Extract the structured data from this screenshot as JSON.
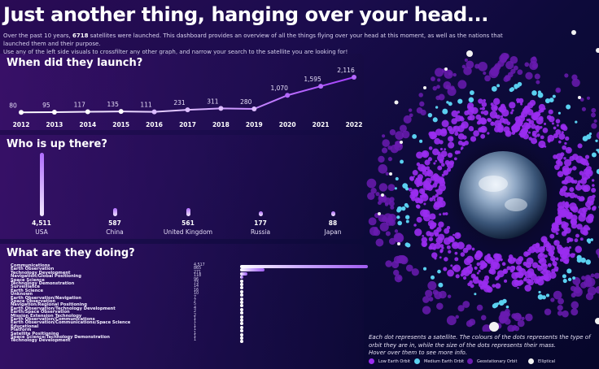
{
  "header": {
    "title": "Just another thing, hanging over your head...",
    "intro_pre": "Over the past 10 years, ",
    "intro_count": "6718",
    "intro_post": " satellites were launched. This dashboard provides an overview of all the things flying over your head at this moment, as well as the nations that launched them and their purpose.",
    "intro_line2": "Use any of the left side visuals to crossfilter any other graph, and narrow your search to the satellite you are looking for!"
  },
  "launch_panel": {
    "title": "When did they launch?"
  },
  "who_panel": {
    "title": "Who is up there?"
  },
  "doing_panel": {
    "title": "What are they doing?"
  },
  "colors": {
    "accent": "#b468ff",
    "low_earth_orbit": "#9a2cf0",
    "medium_earth_orbit": "#5ad0f0",
    "geostationary_orbit": "#6a1bb0",
    "elliptical": "#f2f2f2"
  },
  "chart_data": [
    {
      "type": "line",
      "title": "When did they launch?",
      "x": [
        "2012",
        "2013",
        "2014",
        "2015",
        "2016",
        "2017",
        "2018",
        "2019",
        "2020",
        "2021",
        "2022"
      ],
      "values": [
        80,
        95,
        117,
        135,
        111,
        231,
        311,
        280,
        1070,
        1595,
        2116
      ],
      "labels": [
        "80",
        "95",
        "117",
        "135",
        "111",
        "231",
        "311",
        "280",
        "1,070",
        "1,595",
        "2,116"
      ]
    },
    {
      "type": "bar",
      "title": "Who is up there?",
      "categories": [
        "USA",
        "China",
        "United Kingdom",
        "Russia",
        "Japan"
      ],
      "values": [
        4511,
        587,
        561,
        177,
        88
      ],
      "labels": [
        "4,511",
        "587",
        "561",
        "177",
        "88"
      ]
    },
    {
      "type": "bar",
      "title": "What are they doing?",
      "categories": [
        "Communications",
        "Earth Observation",
        "Technology Development",
        "Navigation/Global Positioning",
        "Space Science",
        "Technology Demonstration",
        "Surveillance",
        "Earth Science",
        "Unknown",
        "Earth Observation/Navigation",
        "Space Observation",
        "Navigation/Regional Positioning",
        "Earth Observation/Technology Development",
        "Earth/Space Observation",
        "Mission Extension Technology",
        "Earth Observation/Communications",
        "Earth Observation/Communications/Space Science",
        "Educational",
        "Platform",
        "Satellite Positioning",
        "Space Science/Technology Demonstration",
        "Technology  Development"
      ],
      "values": [
        4517,
        865,
        271,
        118,
        96,
        73,
        14,
        16,
        10,
        7,
        7,
        5,
        4,
        2,
        2,
        1,
        1,
        1,
        1,
        1,
        1,
        1
      ],
      "labels": [
        "4,517",
        "865",
        "271",
        "118",
        "96",
        "73",
        "14",
        "16",
        "10",
        "7",
        "7",
        "5",
        "4",
        "2",
        "2",
        "1",
        "1",
        "1",
        "1",
        "1",
        "1",
        "1"
      ]
    }
  ],
  "orbit_visual": {
    "caption": "Each dot represents a satellite. The colours of the dots represents the type of orbit they are in, while the size of the dots represents their mass.",
    "hover_hint": "Hover over them to see more info.",
    "legend": [
      "Low Earth Orbit",
      "Medium Earth Orbit",
      "Geostationary Orbit",
      "Elliptical"
    ]
  }
}
